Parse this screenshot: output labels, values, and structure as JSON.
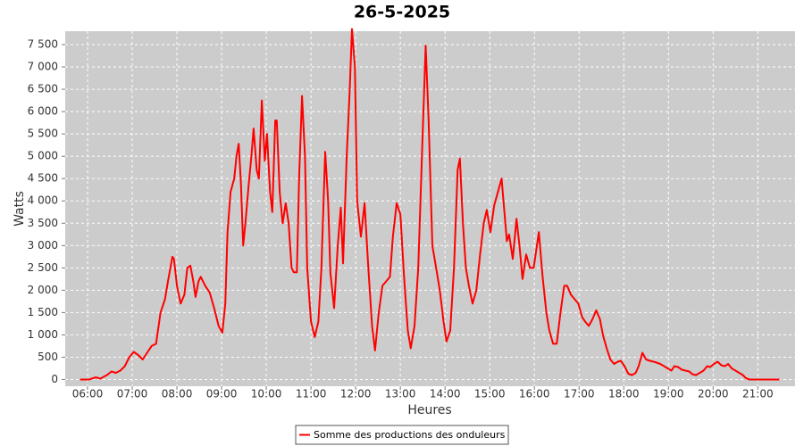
{
  "chart_data": {
    "type": "line",
    "title": "26-5-2025",
    "x_label": "Heures",
    "y_label": "Watts",
    "xlim": [
      "05:30",
      "21:50"
    ],
    "xticks": [
      "06:00",
      "07:00",
      "08:00",
      "09:00",
      "10:00",
      "11:00",
      "12:00",
      "13:00",
      "14:00",
      "15:00",
      "16:00",
      "17:00",
      "18:00",
      "19:00",
      "20:00",
      "21:00"
    ],
    "ylim": [
      -150,
      7800
    ],
    "yticks": [
      0,
      500,
      {
        "value": 1000,
        "label": "1 000"
      },
      {
        "value": 1500,
        "label": "1 500"
      },
      {
        "value": 2000,
        "label": "2 000"
      },
      {
        "value": 2500,
        "label": "2 500"
      },
      {
        "value": 3000,
        "label": "3 000"
      },
      {
        "value": 3500,
        "label": "3 500"
      },
      {
        "value": 4000,
        "label": "4 000"
      },
      {
        "value": 4500,
        "label": "4 500"
      },
      {
        "value": 5000,
        "label": "5 000"
      },
      {
        "value": 5500,
        "label": "5 500"
      },
      {
        "value": 6000,
        "label": "6 000"
      },
      {
        "value": 6500,
        "label": "6 500"
      },
      {
        "value": 7000,
        "label": "7 000"
      },
      {
        "value": 7500,
        "label": "7 500"
      }
    ],
    "grid": true,
    "legend": "bottom",
    "x": [
      "05:50",
      "06:02",
      "06:11",
      "06:17",
      "06:26",
      "06:32",
      "06:38",
      "06:44",
      "06:50",
      "06:56",
      "07:02",
      "07:08",
      "07:14",
      "07:20",
      "07:26",
      "07:32",
      "07:38",
      "07:44",
      "07:48",
      "07:54",
      "07:56",
      "08:00",
      "08:05",
      "08:10",
      "08:14",
      "08:18",
      "08:22",
      "08:25",
      "08:29",
      "08:32",
      "08:38",
      "08:44",
      "08:50",
      "08:56",
      "09:01",
      "09:05",
      "09:08",
      "09:12",
      "09:17",
      "09:20",
      "09:23",
      "09:26",
      "09:29",
      "09:32",
      "09:36",
      "09:40",
      "09:43",
      "09:47",
      "09:50",
      "09:54",
      "09:58",
      "10:01",
      "10:05",
      "10:08",
      "10:12",
      "10:14",
      "10:18",
      "10:22",
      "10:26",
      "10:30",
      "10:34",
      "10:37",
      "10:41",
      "10:44",
      "10:48",
      "10:52",
      "10:55",
      "11:00",
      "11:05",
      "11:10",
      "11:14",
      "11:19",
      "11:23",
      "11:26",
      "11:31",
      "11:36",
      "11:40",
      "11:43",
      "11:48",
      "11:52",
      "11:55",
      "11:59",
      "12:02",
      "12:07",
      "12:12",
      "12:17",
      "12:22",
      "12:26",
      "12:31",
      "12:36",
      "12:41",
      "12:46",
      "12:50",
      "12:55",
      "13:00",
      "13:05",
      "13:10",
      "13:14",
      "13:19",
      "13:24",
      "13:29",
      "13:34",
      "13:38",
      "13:43",
      "13:48",
      "13:53",
      "13:58",
      "14:02",
      "14:07",
      "14:12",
      "14:17",
      "14:20",
      "14:24",
      "14:28",
      "14:32",
      "14:37",
      "14:42",
      "14:47",
      "14:52",
      "14:56",
      "15:01",
      "15:06",
      "15:11",
      "15:16",
      "15:19",
      "15:23",
      "15:26",
      "15:31",
      "15:36",
      "15:40",
      "15:44",
      "15:49",
      "15:54",
      "15:59",
      "16:06",
      "16:11",
      "16:16",
      "16:20",
      "16:25",
      "16:30",
      "16:35",
      "16:40",
      "16:44",
      "16:49",
      "16:54",
      "16:59",
      "17:04",
      "17:08",
      "17:13",
      "17:18",
      "17:23",
      "17:28",
      "17:32",
      "17:37",
      "17:42",
      "17:47",
      "17:52",
      "17:56",
      "18:01",
      "18:06",
      "18:11",
      "18:16",
      "18:20",
      "18:25",
      "18:30",
      "18:35",
      "18:40",
      "18:44",
      "18:49",
      "18:54",
      "18:59",
      "19:04",
      "19:08",
      "19:13",
      "19:18",
      "19:23",
      "19:28",
      "19:32",
      "19:37",
      "19:42",
      "19:47",
      "19:52",
      "19:56",
      "20:01",
      "20:06",
      "20:11",
      "20:16",
      "20:20",
      "20:25",
      "20:30",
      "20:35",
      "20:40",
      "20:44",
      "20:49",
      "21:29"
    ],
    "series": [
      {
        "name": "Somme des productions des onduleurs",
        "color": "#ff0000",
        "values": [
          0,
          0,
          50,
          20,
          100,
          180,
          150,
          200,
          300,
          500,
          620,
          550,
          450,
          600,
          750,
          800,
          1500,
          1800,
          2200,
          2750,
          2700,
          2100,
          1700,
          1900,
          2500,
          2550,
          2200,
          1850,
          2200,
          2300,
          2100,
          1950,
          1600,
          1200,
          1050,
          1700,
          3300,
          4200,
          4500,
          5000,
          5280,
          4400,
          3000,
          3500,
          4300,
          5000,
          5620,
          4700,
          4500,
          6250,
          4900,
          5500,
          4200,
          3750,
          5800,
          5800,
          4200,
          3500,
          3950,
          3500,
          2500,
          2400,
          2400,
          4500,
          6350,
          5000,
          2500,
          1300,
          950,
          1300,
          2500,
          5100,
          4000,
          2400,
          1600,
          3000,
          3850,
          2600,
          5000,
          6500,
          7850,
          7000,
          4000,
          3200,
          3950,
          2500,
          1200,
          650,
          1500,
          2100,
          2200,
          2300,
          3200,
          3950,
          3700,
          2300,
          1100,
          700,
          1200,
          2500,
          5000,
          7480,
          5800,
          3000,
          2500,
          2000,
          1300,
          850,
          1100,
          2500,
          4700,
          4950,
          3500,
          2500,
          2100,
          1700,
          2000,
          2800,
          3500,
          3800,
          3300,
          3900,
          4200,
          4500,
          3900,
          3100,
          3250,
          2700,
          3600,
          3000,
          2250,
          2800,
          2500,
          2500,
          3300,
          2300,
          1500,
          1100,
          800,
          800,
          1500,
          2100,
          2100,
          1900,
          1800,
          1700,
          1400,
          1300,
          1200,
          1350,
          1550,
          1350,
          1000,
          700,
          450,
          350,
          400,
          420,
          300,
          130,
          100,
          150,
          300,
          600,
          450,
          420,
          400,
          380,
          350,
          300,
          250,
          200,
          300,
          280,
          220,
          200,
          180,
          120,
          100,
          150,
          200,
          300,
          280,
          350,
          400,
          320,
          300,
          350,
          250,
          200,
          150,
          100,
          30,
          0,
          0
        ]
      }
    ]
  }
}
